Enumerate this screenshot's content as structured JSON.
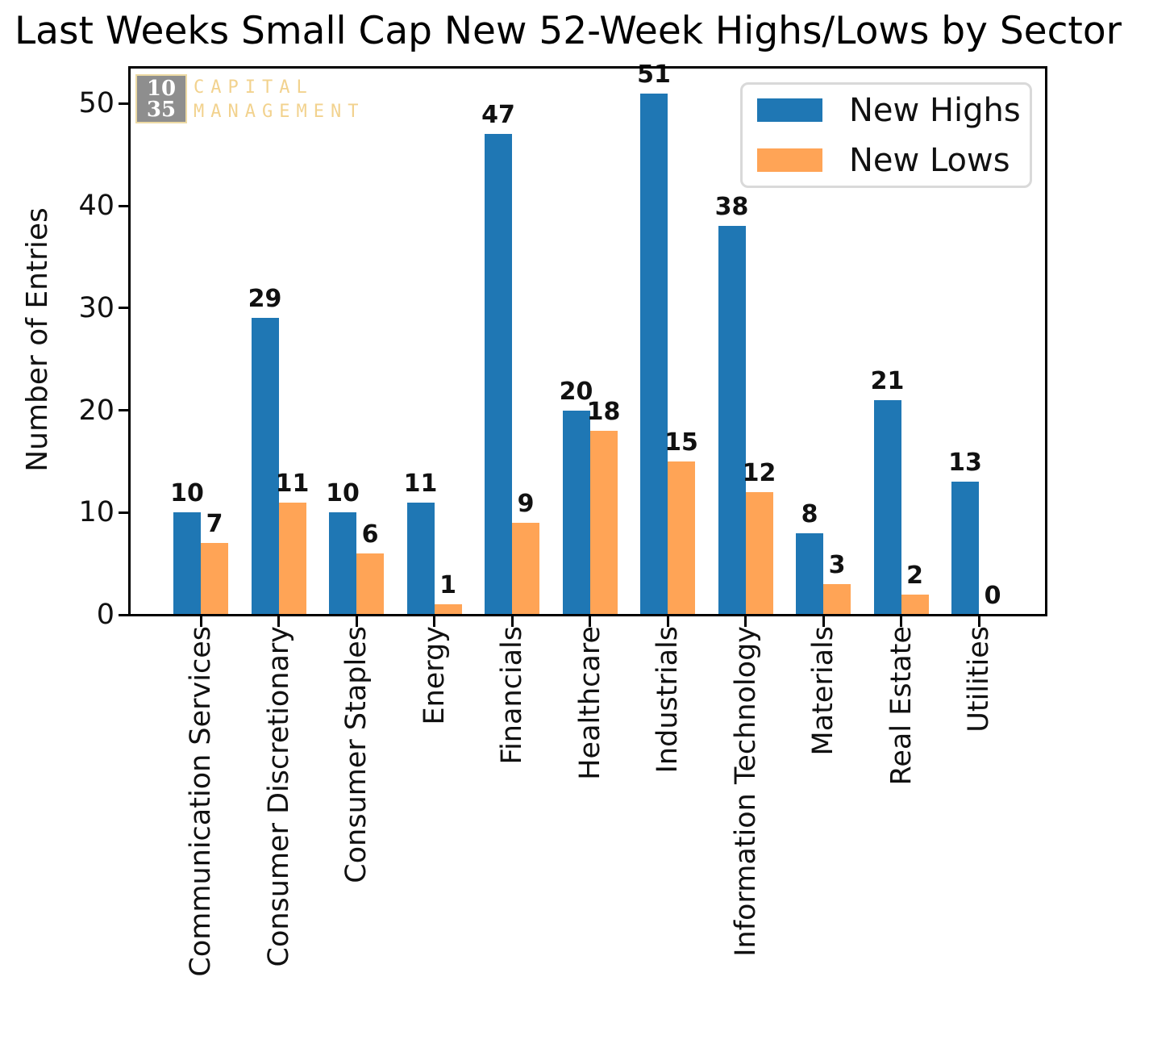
{
  "title": "Last Weeks Small Cap New 52-Week Highs/Lows by Sector",
  "ylabel": "Number of Entries",
  "logo": {
    "num_top": "10",
    "num_bottom": "35",
    "word1": "CAPITAL",
    "word2": "MANAGEMENT",
    "box_color": "#8e8e8e",
    "accent_color": "#f2d28e"
  },
  "legend": {
    "items": [
      {
        "label": "New Highs",
        "color": "#1f77b4"
      },
      {
        "label": "New Lows",
        "color": "#ffa456"
      }
    ]
  },
  "chart_data": {
    "type": "bar",
    "title": "Last Weeks Small Cap New 52-Week Highs/Lows by Sector",
    "xlabel": "",
    "ylabel": "Number of Entries",
    "categories": [
      "Communication Services",
      "Consumer Discretionary",
      "Consumer Staples",
      "Energy",
      "Financials",
      "Healthcare",
      "Industrials",
      "Information Technology",
      "Materials",
      "Real Estate",
      "Utilities"
    ],
    "series": [
      {
        "name": "New Highs",
        "color": "#1f77b4",
        "values": [
          10,
          29,
          10,
          11,
          47,
          20,
          51,
          38,
          8,
          21,
          13
        ]
      },
      {
        "name": "New Lows",
        "color": "#ffa456",
        "values": [
          7,
          11,
          6,
          1,
          9,
          18,
          15,
          12,
          3,
          2,
          0
        ]
      }
    ],
    "ylim": [
      0,
      53.5
    ],
    "yticks": [
      0,
      10,
      20,
      30,
      40,
      50
    ],
    "grid": false,
    "legend_position": "upper right",
    "bar_value_labels": true,
    "xtick_rotation": 90
  }
}
